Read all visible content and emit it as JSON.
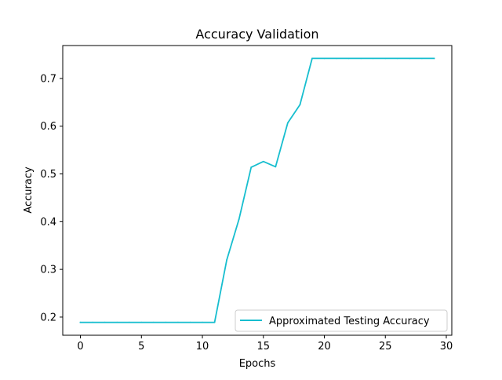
{
  "chart_data": {
    "type": "line",
    "title": "Accuracy Validation",
    "xlabel": "Epochs",
    "ylabel": "Accuracy",
    "xlim": [
      -1.45,
      30.45
    ],
    "ylim": [
      0.162,
      0.769
    ],
    "xticks": [
      0,
      5,
      10,
      15,
      20,
      25,
      30
    ],
    "xtick_labels": [
      "0",
      "5",
      "10",
      "15",
      "20",
      "25",
      "30"
    ],
    "yticks": [
      0.2,
      0.3,
      0.4,
      0.5,
      0.6,
      0.7
    ],
    "ytick_labels": [
      "0.2",
      "0.3",
      "0.4",
      "0.5",
      "0.6",
      "0.7"
    ],
    "grid": false,
    "legend_position": "lower right",
    "series": [
      {
        "name": "Approximated Testing Accuracy",
        "color": "#17becf",
        "x": [
          0,
          1,
          2,
          3,
          4,
          5,
          6,
          7,
          8,
          9,
          10,
          11,
          12,
          13,
          14,
          15,
          16,
          17,
          18,
          19,
          20,
          21,
          22,
          23,
          24,
          25,
          26,
          27,
          28,
          29
        ],
        "y": [
          0.189,
          0.189,
          0.189,
          0.189,
          0.189,
          0.189,
          0.189,
          0.189,
          0.189,
          0.189,
          0.189,
          0.189,
          0.32,
          0.405,
          0.514,
          0.526,
          0.515,
          0.607,
          0.645,
          0.742,
          0.742,
          0.742,
          0.742,
          0.742,
          0.742,
          0.742,
          0.742,
          0.742,
          0.742,
          0.742
        ]
      }
    ]
  }
}
